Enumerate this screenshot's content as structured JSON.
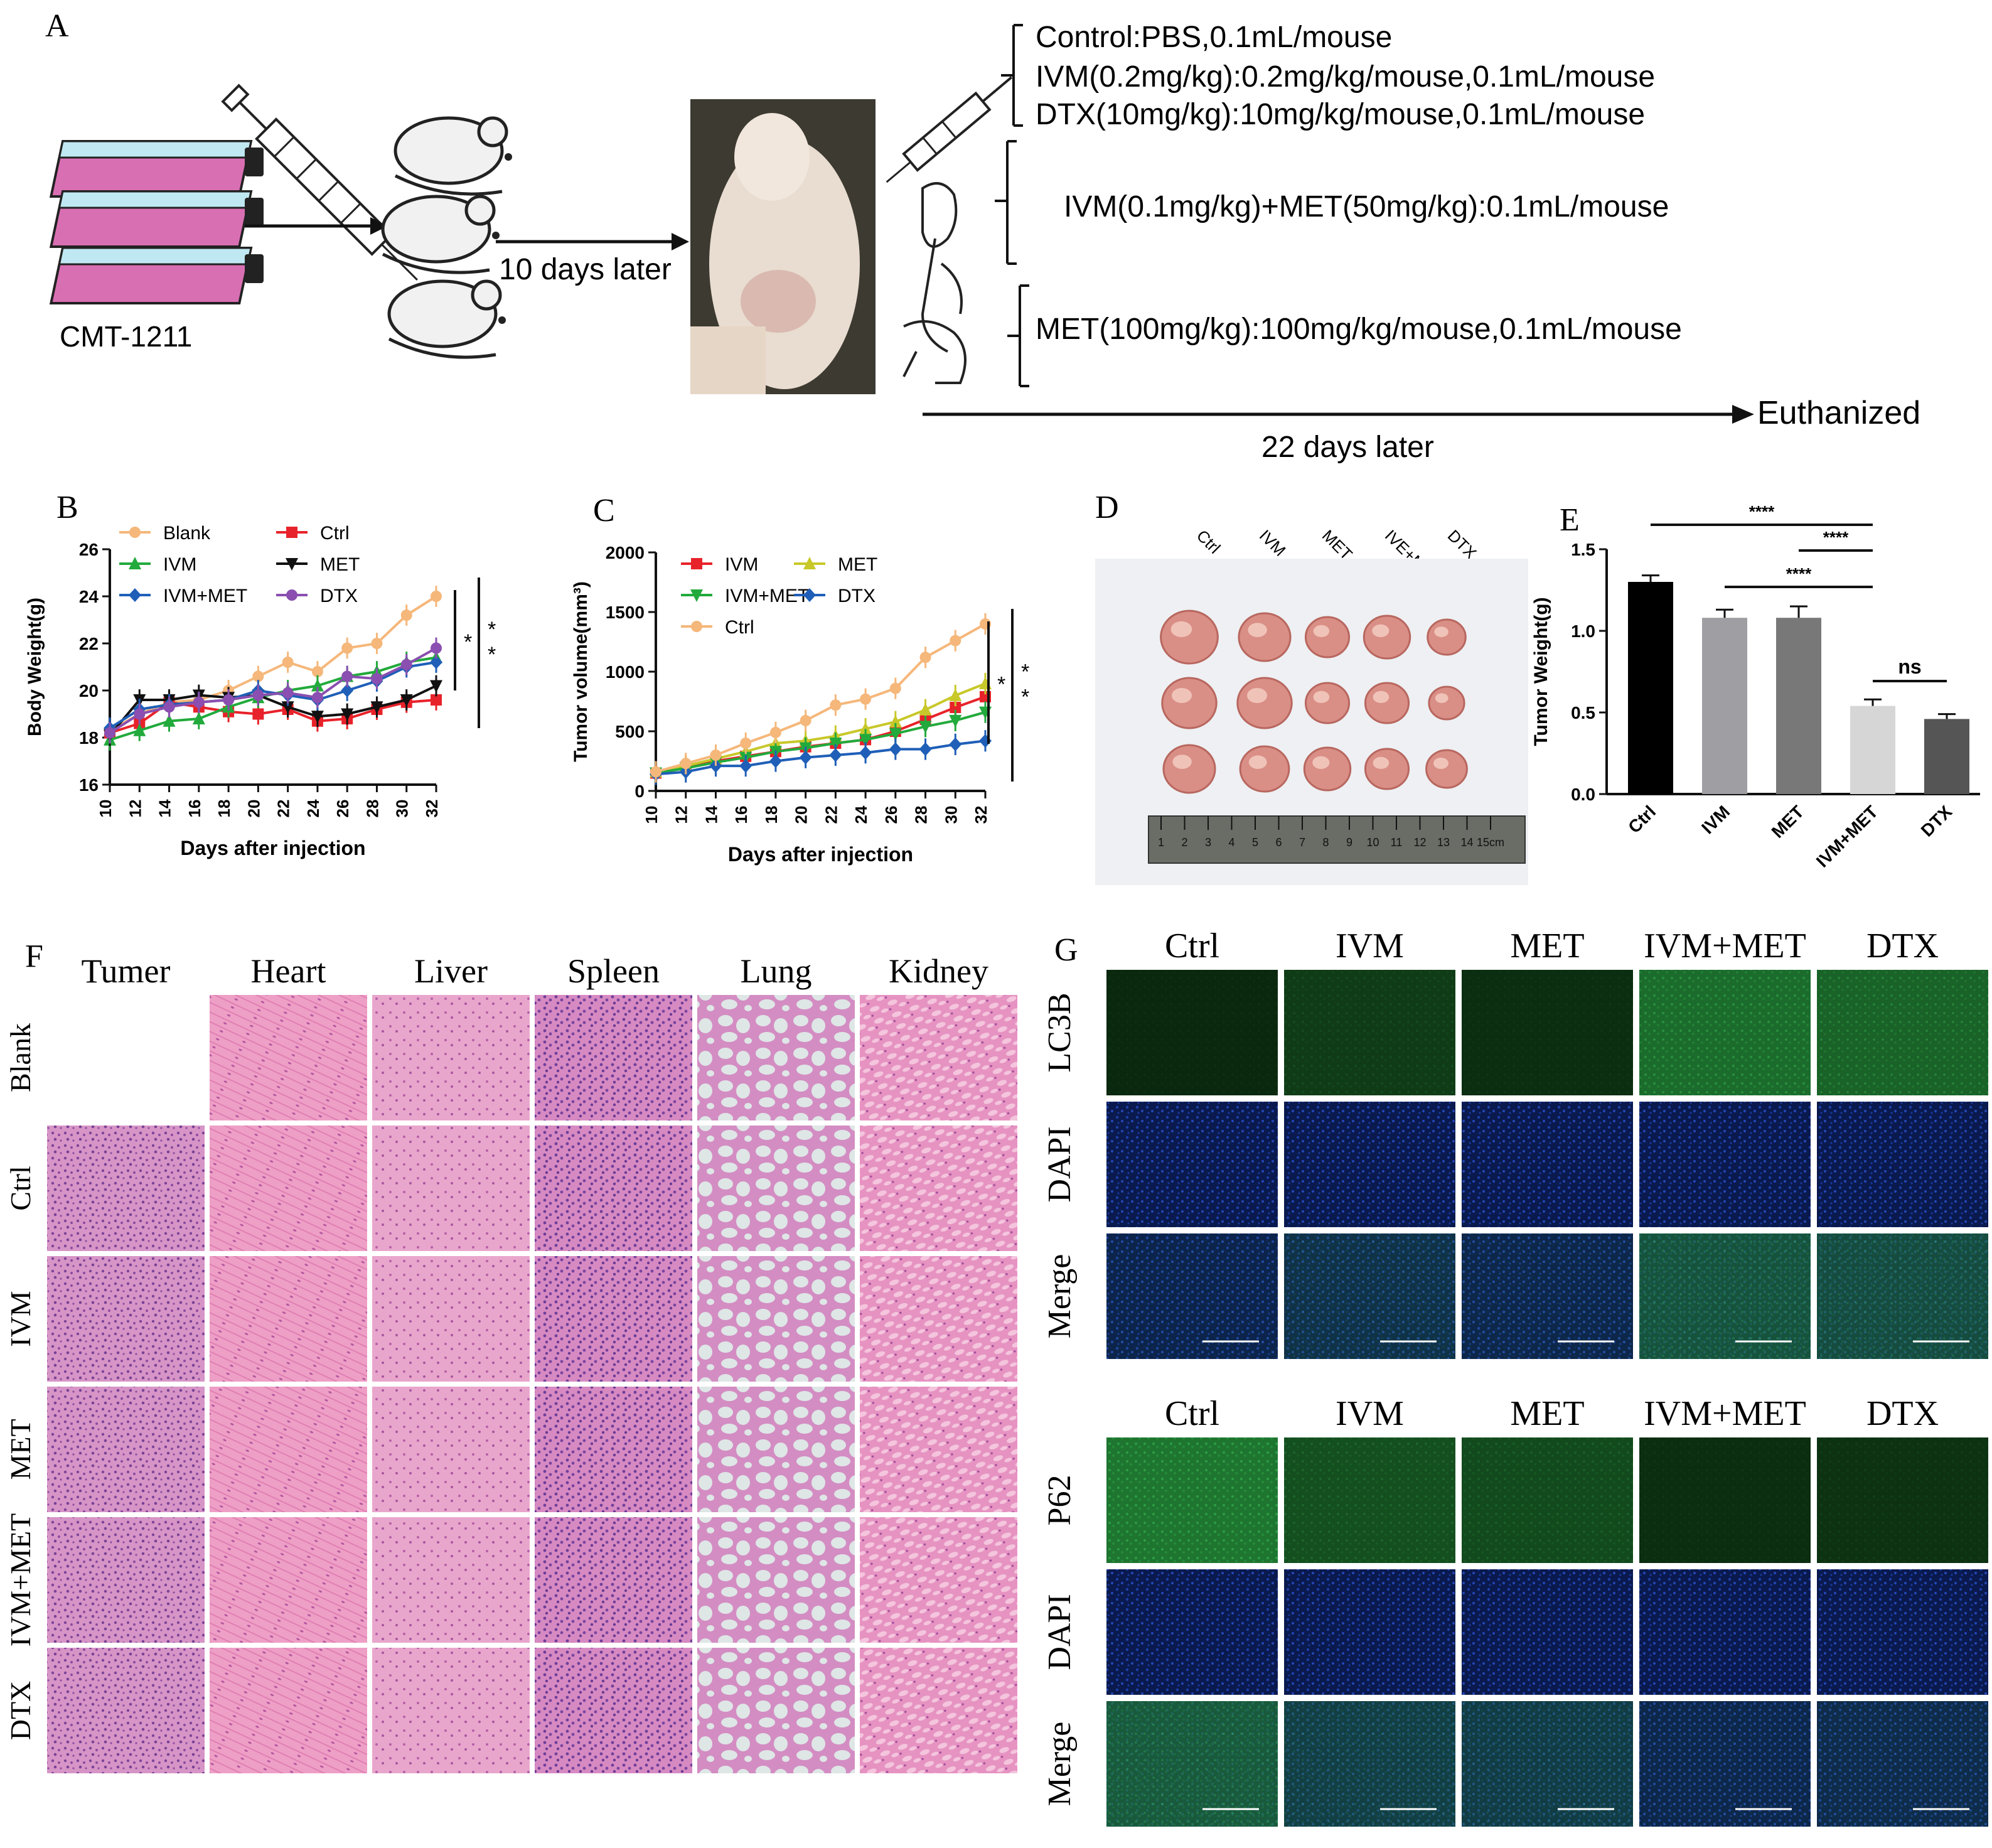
{
  "panels": {
    "A": {
      "letter": "A",
      "cell_line": "CMT-1211",
      "wait_label": "10 days later",
      "treatments": [
        "Control:PBS,0.1mL/mouse",
        "IVM(0.2mg/kg):0.2mg/kg/mouse,0.1mL/mouse",
        "DTX(10mg/kg):10mg/kg/mouse,0.1mL/mouse",
        "IVM(0.1mg/kg)+MET(50mg/kg):0.1mL/mouse",
        "MET(100mg/kg):100mg/kg/mouse,0.1mL/mouse"
      ],
      "endpoint_label": "Euthanized",
      "duration_label": "22 days later",
      "colors": {
        "flask_body": "#d96fb3",
        "flask_band": "#bfe8f2",
        "flask_cap": "#222222"
      }
    },
    "B": {
      "letter": "B"
    },
    "C": {
      "letter": "C"
    },
    "D": {
      "letter": "D",
      "labels": [
        "Ctrl",
        "IVM",
        "MET",
        "IVE+MET",
        "DTX"
      ],
      "ruler_numbers": [
        "1",
        "2",
        "3",
        "4",
        "5",
        "6",
        "7",
        "8",
        "9",
        "10",
        "11",
        "12",
        "13",
        "14",
        "15cm"
      ]
    },
    "E": {
      "letter": "E"
    },
    "F": {
      "letter": "F",
      "columns": [
        "Tumer",
        "Heart",
        "Liver",
        "Spleen",
        "Lung",
        "Kidney"
      ],
      "rows": [
        "Blank",
        "Ctrl",
        "IVM",
        "MET",
        "IVM+MET",
        "DTX"
      ]
    },
    "G": {
      "letter": "G",
      "columns": [
        "Ctrl",
        "IVM",
        "MET",
        "IVM+MET",
        "DTX"
      ],
      "top_rows": [
        "LC3B",
        "DAPI",
        "Merge"
      ],
      "bottom_rows": [
        "P62",
        "DAPI",
        "Merge"
      ],
      "lc3b_intensity": [
        0.15,
        0.35,
        0.2,
        0.85,
        0.75
      ],
      "p62_intensity": [
        0.95,
        0.55,
        0.5,
        0.2,
        0.25
      ]
    }
  },
  "chart_data": [
    {
      "id": "B",
      "type": "line",
      "xlabel": "Days after injection",
      "ylabel": "Body Weight(g)",
      "x": [
        10,
        12,
        14,
        16,
        18,
        20,
        22,
        24,
        26,
        28,
        30,
        32
      ],
      "xlim": [
        10,
        32
      ],
      "ylim": [
        16,
        26
      ],
      "yticks": [
        16,
        18,
        20,
        22,
        24,
        26
      ],
      "legend": "top-left, two columns",
      "significance": [
        "*",
        "*",
        "*"
      ],
      "series": [
        {
          "name": "Blank",
          "color": "#f5b77a",
          "marker": "circle",
          "values": [
            18.3,
            19.0,
            19.5,
            19.6,
            20.0,
            20.6,
            21.2,
            20.8,
            21.8,
            22.0,
            23.2,
            24.0
          ]
        },
        {
          "name": "Ctrl",
          "color": "#e8222a",
          "marker": "square",
          "values": [
            18.2,
            18.6,
            19.5,
            19.3,
            19.1,
            19.0,
            19.2,
            18.7,
            18.8,
            19.2,
            19.5,
            19.6
          ]
        },
        {
          "name": "IVM",
          "color": "#22aa3c",
          "marker": "triangle",
          "values": [
            17.9,
            18.3,
            18.7,
            18.8,
            19.3,
            19.7,
            20.0,
            20.2,
            20.6,
            20.8,
            21.2,
            21.4
          ]
        },
        {
          "name": "MET",
          "color": "#111111",
          "marker": "triangle-down",
          "values": [
            18.1,
            19.6,
            19.6,
            19.8,
            19.7,
            19.8,
            19.3,
            18.9,
            19.0,
            19.3,
            19.6,
            20.2
          ]
        },
        {
          "name": "IVM+MET",
          "color": "#1f5fb8",
          "marker": "diamond",
          "values": [
            18.4,
            19.2,
            19.4,
            19.5,
            19.6,
            20.0,
            19.8,
            19.6,
            20.0,
            20.4,
            21.0,
            21.2
          ]
        },
        {
          "name": "DTX",
          "color": "#8a4fb0",
          "marker": "circle",
          "values": [
            18.2,
            19.0,
            19.3,
            19.5,
            19.6,
            19.8,
            19.9,
            19.7,
            20.6,
            20.5,
            21.1,
            21.8
          ]
        }
      ]
    },
    {
      "id": "C",
      "type": "line",
      "xlabel": "Days after injection",
      "ylabel": "Tumor volume(mm³)",
      "x": [
        10,
        12,
        14,
        16,
        18,
        20,
        22,
        24,
        26,
        28,
        30,
        32
      ],
      "xlim": [
        10,
        32
      ],
      "ylim": [
        0,
        2000
      ],
      "yticks": [
        0,
        500,
        1000,
        1500,
        2000
      ],
      "legend": "top-left, two columns",
      "significance": [
        "*",
        "*",
        "*"
      ],
      "series": [
        {
          "name": "IVM",
          "color": "#e8222a",
          "marker": "square",
          "values": [
            150,
            200,
            250,
            290,
            330,
            370,
            400,
            430,
            500,
            600,
            700,
            790
          ]
        },
        {
          "name": "MET",
          "color": "#c8c82a",
          "marker": "triangle",
          "values": [
            160,
            210,
            270,
            330,
            400,
            420,
            460,
            520,
            580,
            680,
            800,
            900
          ]
        },
        {
          "name": "IVM+MET",
          "color": "#22aa3c",
          "marker": "triangle-down",
          "values": [
            150,
            190,
            240,
            280,
            330,
            360,
            400,
            430,
            480,
            540,
            590,
            660
          ]
        },
        {
          "name": "DTX",
          "color": "#1f5fb8",
          "marker": "diamond",
          "values": [
            140,
            160,
            210,
            210,
            250,
            280,
            300,
            320,
            350,
            350,
            390,
            420
          ]
        },
        {
          "name": "Ctrl",
          "color": "#f5b77a",
          "marker": "circle",
          "values": [
            160,
            230,
            300,
            400,
            490,
            590,
            720,
            770,
            860,
            1120,
            1260,
            1400
          ]
        }
      ]
    },
    {
      "id": "E",
      "type": "bar",
      "ylabel": "Tumor Weight(g)",
      "categories": [
        "Ctrl",
        "IVM",
        "MET",
        "IVM+MET",
        "DTX"
      ],
      "values": [
        1.3,
        1.08,
        1.08,
        0.54,
        0.46
      ],
      "errors": [
        0.04,
        0.05,
        0.07,
        0.04,
        0.03
      ],
      "colors": [
        "#000000",
        "#9e9ea3",
        "#787878",
        "#d6d6d6",
        "#555555"
      ],
      "ylim": [
        0,
        1.5
      ],
      "yticks": [
        0.0,
        0.5,
        1.0,
        1.5
      ],
      "yticklabels": [
        "0.0",
        "0.5",
        "1.0",
        "1.5"
      ],
      "comparisons": [
        {
          "from": 0,
          "to": 3,
          "label": "****"
        },
        {
          "from": 1,
          "to": 3,
          "label": "****"
        },
        {
          "from": 2,
          "to": 3,
          "label": "****"
        },
        {
          "from": 3,
          "to": 4,
          "label": "ns"
        }
      ]
    }
  ]
}
